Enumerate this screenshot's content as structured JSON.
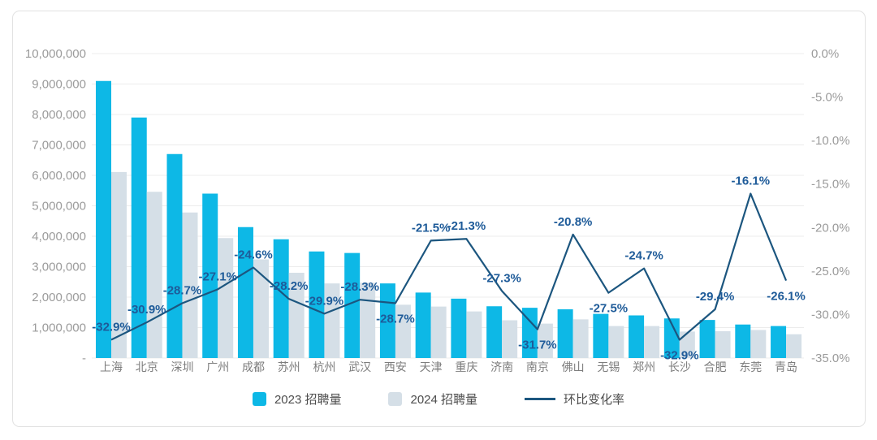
{
  "chart_data": {
    "type": "bar",
    "title": "",
    "categories": [
      "上海",
      "北京",
      "深圳",
      "广州",
      "成都",
      "苏州",
      "杭州",
      "武汉",
      "西安",
      "天津",
      "重庆",
      "济南",
      "南京",
      "佛山",
      "无锡",
      "郑州",
      "长沙",
      "合肥",
      "东莞",
      "青岛"
    ],
    "series": [
      {
        "name": "2023 招聘量",
        "type": "bar",
        "color": "#0db8e6",
        "values": [
          9100000,
          7900000,
          6700000,
          5400000,
          4300000,
          3900000,
          3500000,
          3450000,
          2450000,
          2150000,
          1950000,
          1700000,
          1650000,
          1600000,
          1450000,
          1400000,
          1300000,
          1250000,
          1100000,
          1050000
        ]
      },
      {
        "name": "2024 招聘量",
        "type": "bar",
        "color": "#d5dfe7",
        "values": [
          6110000,
          5460000,
          4780000,
          3940000,
          3240000,
          2800000,
          2450000,
          2470000,
          1750000,
          1690000,
          1530000,
          1240000,
          1130000,
          1270000,
          1050000,
          1050000,
          870000,
          880000,
          920000,
          780000
        ]
      },
      {
        "name": "环比变化率",
        "type": "line",
        "axis": "right",
        "color": "#1c567f",
        "label_color": "#1e5b99",
        "values": [
          -32.9,
          -30.9,
          -28.7,
          -27.1,
          -24.6,
          -28.2,
          -29.9,
          -28.3,
          -28.7,
          -21.5,
          -21.3,
          -27.3,
          -31.7,
          -20.8,
          -27.5,
          -24.7,
          -32.9,
          -29.4,
          -16.1,
          -26.1
        ],
        "labels": [
          "-32.9%",
          "-30.9%",
          "-28.7%",
          "-27.1%",
          "-24.6%",
          "-28.2%",
          "-29.9%",
          "-28.3%",
          "-28.7%",
          "-21.5%",
          "-21.3%",
          "-27.3%",
          "-31.7%",
          "-20.8%",
          "-27.5%",
          "-24.7%",
          "-32.9%",
          "-29.4%",
          "-16.1%",
          "-26.1%"
        ],
        "label_side": [
          "above",
          "above",
          "above",
          "above",
          "above",
          "above",
          "above",
          "above",
          "below",
          "above",
          "above",
          "above",
          "below",
          "above",
          "below",
          "above",
          "below",
          "above",
          "above",
          "below"
        ]
      }
    ],
    "left_axis": {
      "min": 0,
      "max": 10000000,
      "tick_labels": [
        "10,000,000",
        "9,000,000",
        "8,000,000",
        "7,000,000",
        "6,000,000",
        "5,000,000",
        "4,000,000",
        "3,000,000",
        "2,000,000",
        "1,000,000",
        "-"
      ]
    },
    "right_axis": {
      "min": -35,
      "max": 0,
      "tick_labels": [
        "0.0%",
        "-5.0%",
        "-10.0%",
        "-15.0%",
        "-20.0%",
        "-25.0%",
        "-30.0%",
        "-35.0%"
      ]
    },
    "grid": true,
    "legend_position": "bottom"
  },
  "colors": {
    "grid": "#ececec",
    "axis_text": "#9b9b9b",
    "x_axis_text": "#7d7d7d",
    "card_border": "#e2e2e2",
    "card_bg": "#ffffff",
    "page_bg": "#ffffff"
  }
}
